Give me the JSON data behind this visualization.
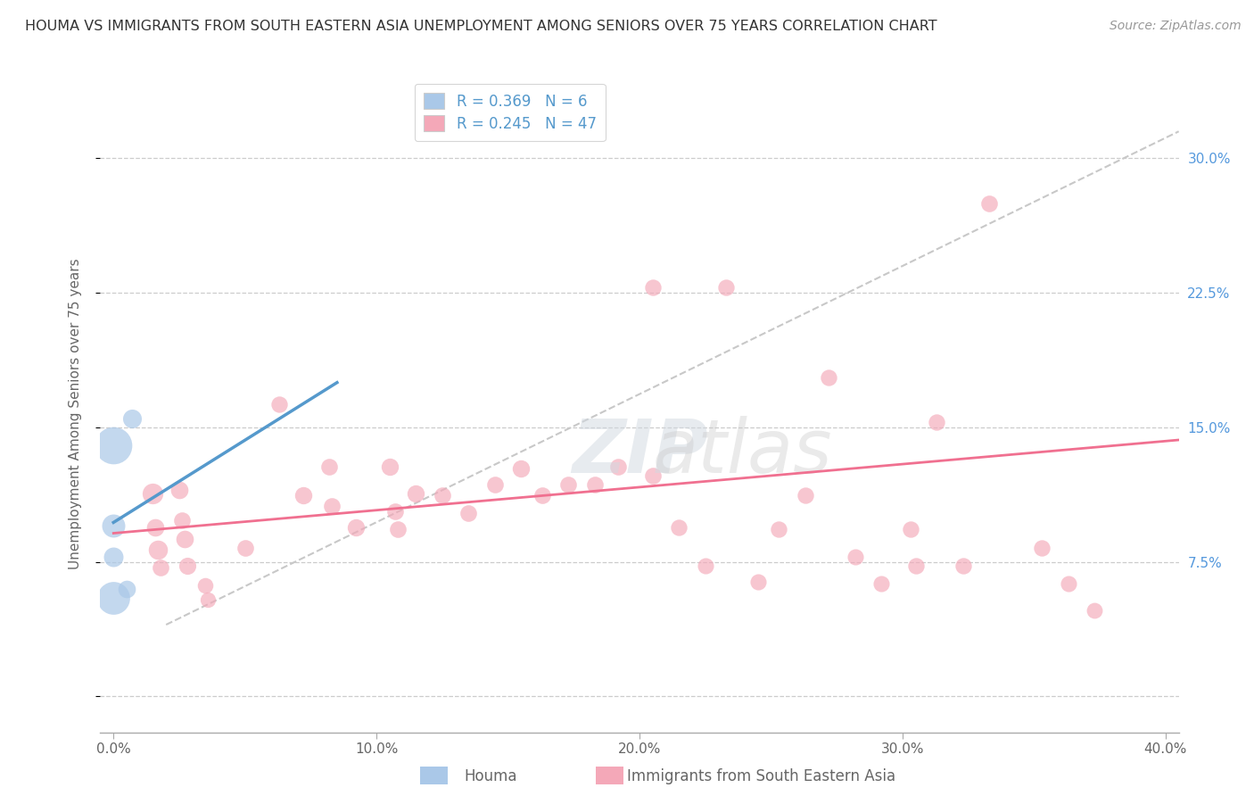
{
  "title": "HOUMA VS IMMIGRANTS FROM SOUTH EASTERN ASIA UNEMPLOYMENT AMONG SENIORS OVER 75 YEARS CORRELATION CHART",
  "source": "Source: ZipAtlas.com",
  "ylabel": "Unemployment Among Seniors over 75 years",
  "xlim": [
    -0.005,
    0.405
  ],
  "ylim": [
    -0.02,
    0.335
  ],
  "ytick_positions": [
    0.0,
    0.075,
    0.15,
    0.225,
    0.3
  ],
  "right_ytick_labels": [
    "7.5%",
    "15.0%",
    "22.5%",
    "30.0%"
  ],
  "right_ytick_positions": [
    0.075,
    0.15,
    0.225,
    0.3
  ],
  "xtick_positions": [
    0.0,
    0.1,
    0.2,
    0.3,
    0.4
  ],
  "xtick_labels": [
    "0.0%",
    "10.0%",
    "20.0%",
    "30.0%",
    "40.0%"
  ],
  "houma_R": 0.369,
  "houma_N": 6,
  "immigrant_R": 0.245,
  "immigrant_N": 47,
  "houma_color": "#aac8e8",
  "immigrant_color": "#f4a8b8",
  "houma_line_color": "#5599cc",
  "immigrant_line_color": "#f07090",
  "trend_line_color": "#c8c8c8",
  "background_color": "#ffffff",
  "houma_points": [
    [
      0.0,
      0.14
    ],
    [
      0.0,
      0.095
    ],
    [
      0.0,
      0.078
    ],
    [
      0.0,
      0.055
    ],
    [
      0.005,
      0.06
    ],
    [
      0.007,
      0.155
    ]
  ],
  "houma_sizes": [
    900,
    350,
    250,
    700,
    200,
    230
  ],
  "houma_line_x": [
    0.0,
    0.085
  ],
  "houma_line_y": [
    0.097,
    0.175
  ],
  "immigrant_line_x": [
    0.0,
    0.405
  ],
  "immigrant_line_y": [
    0.091,
    0.143
  ],
  "trend_line_x": [
    0.02,
    0.405
  ],
  "trend_line_y": [
    0.04,
    0.315
  ],
  "immigrant_points": [
    [
      0.015,
      0.113
    ],
    [
      0.016,
      0.094
    ],
    [
      0.017,
      0.082
    ],
    [
      0.018,
      0.072
    ],
    [
      0.025,
      0.115
    ],
    [
      0.026,
      0.098
    ],
    [
      0.027,
      0.088
    ],
    [
      0.028,
      0.073
    ],
    [
      0.035,
      0.062
    ],
    [
      0.036,
      0.054
    ],
    [
      0.05,
      0.083
    ],
    [
      0.063,
      0.163
    ],
    [
      0.072,
      0.112
    ],
    [
      0.082,
      0.128
    ],
    [
      0.083,
      0.106
    ],
    [
      0.092,
      0.094
    ],
    [
      0.105,
      0.128
    ],
    [
      0.107,
      0.103
    ],
    [
      0.108,
      0.093
    ],
    [
      0.115,
      0.113
    ],
    [
      0.125,
      0.112
    ],
    [
      0.135,
      0.102
    ],
    [
      0.145,
      0.118
    ],
    [
      0.155,
      0.127
    ],
    [
      0.163,
      0.112
    ],
    [
      0.173,
      0.118
    ],
    [
      0.183,
      0.118
    ],
    [
      0.192,
      0.128
    ],
    [
      0.205,
      0.123
    ],
    [
      0.205,
      0.228
    ],
    [
      0.215,
      0.094
    ],
    [
      0.225,
      0.073
    ],
    [
      0.233,
      0.228
    ],
    [
      0.245,
      0.064
    ],
    [
      0.253,
      0.093
    ],
    [
      0.263,
      0.112
    ],
    [
      0.272,
      0.178
    ],
    [
      0.282,
      0.078
    ],
    [
      0.292,
      0.063
    ],
    [
      0.303,
      0.093
    ],
    [
      0.305,
      0.073
    ],
    [
      0.313,
      0.153
    ],
    [
      0.323,
      0.073
    ],
    [
      0.333,
      0.275
    ],
    [
      0.353,
      0.083
    ],
    [
      0.363,
      0.063
    ],
    [
      0.373,
      0.048
    ]
  ],
  "immigrant_sizes": [
    280,
    200,
    240,
    180,
    200,
    180,
    200,
    190,
    160,
    155,
    180,
    175,
    195,
    180,
    180,
    195,
    195,
    180,
    180,
    195,
    180,
    180,
    180,
    195,
    180,
    180,
    180,
    180,
    180,
    175,
    175,
    170,
    175,
    170,
    175,
    175,
    175,
    170,
    170,
    175,
    175,
    175,
    175,
    180,
    175,
    170,
    165
  ]
}
